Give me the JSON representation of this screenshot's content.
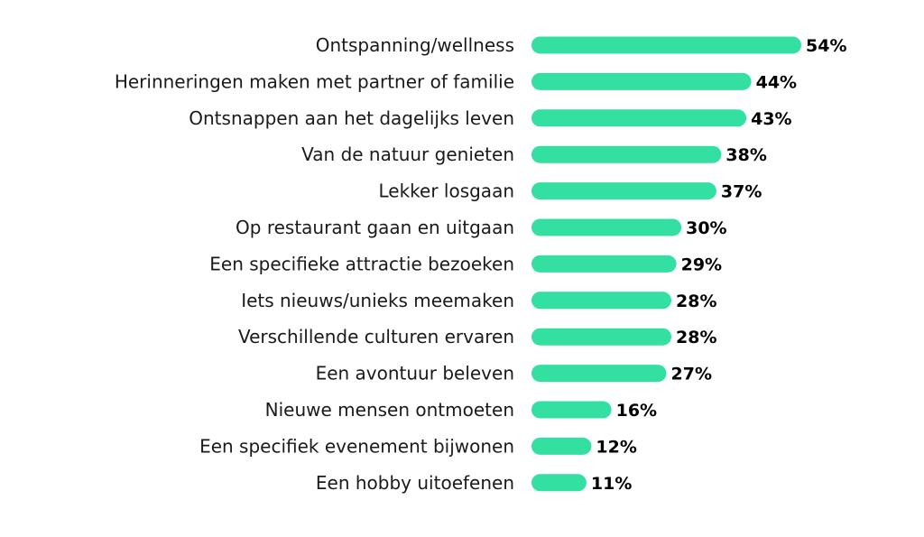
{
  "chart_data": {
    "type": "bar",
    "orientation": "horizontal",
    "title": "",
    "xlabel": "",
    "ylabel": "",
    "value_suffix": "%",
    "xlim": [
      0,
      54
    ],
    "grid": false,
    "legend": "none",
    "bar_color": "#34e0a1",
    "categories": [
      "Ontspanning/wellness",
      "Herinneringen maken met partner of familie",
      "Ontsnappen aan het dagelijks leven",
      "Van de natuur genieten",
      "Lekker losgaan",
      "Op restaurant gaan en uitgaan",
      "Een specifieke attractie bezoeken",
      "Iets nieuws/unieks meemaken",
      "Verschillende culturen ervaren",
      "Een avontuur beleven",
      "Nieuwe mensen ontmoeten",
      "Een specifiek evenement bijwonen",
      "Een hobby uitoefenen"
    ],
    "values": [
      54,
      44,
      43,
      38,
      37,
      30,
      29,
      28,
      28,
      27,
      16,
      12,
      11
    ],
    "value_labels": [
      "54%",
      "44%",
      "43%",
      "38%",
      "37%",
      "30%",
      "29%",
      "28%",
      "28%",
      "27%",
      "16%",
      "12%",
      "11%"
    ]
  }
}
